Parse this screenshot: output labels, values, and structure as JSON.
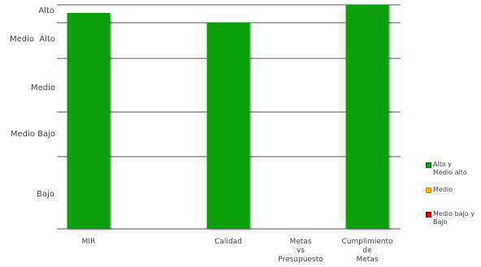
{
  "chart_data": {
    "type": "bar",
    "y_levels": [
      "Alto",
      "Medio  Alto",
      "Medio",
      "Medio Bajo",
      "Bajo"
    ],
    "y_level_boundaries": [
      0,
      1,
      2,
      3,
      4,
      5
    ],
    "ylim": [
      0,
      5
    ],
    "grid": true,
    "legend_position": "right",
    "categories": [
      {
        "label_lines": [
          "MIR"
        ],
        "value": 4.55
      },
      {
        "label_lines": [
          "Calidad"
        ],
        "value": 4.02
      },
      {
        "label_lines": [
          "Metas",
          "vs",
          "Presupuesto"
        ],
        "value": 0
      },
      {
        "label_lines": [
          "Cumplimiento",
          "de",
          "Metas"
        ],
        "value": 5.0
      }
    ],
    "series": [
      {
        "name": "Alto y Medio alto",
        "legend_lines": [
          "Alto y",
          "Medio alto"
        ],
        "color": "#0a9e0a"
      },
      {
        "name": "Medio",
        "legend_lines": [
          "Medio"
        ],
        "color": "#f5b800"
      },
      {
        "name": "Medio bajo y Bajo",
        "legend_lines": [
          "Medio bajo y",
          "Bajo"
        ],
        "color": "#e00000"
      }
    ],
    "bar_color": "#0a9e0a",
    "title": "",
    "xlabel": "",
    "ylabel": ""
  }
}
